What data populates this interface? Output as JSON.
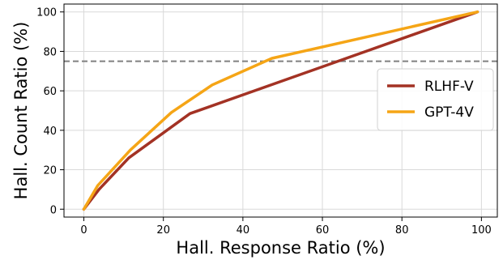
{
  "chart_data": {
    "type": "line",
    "xlabel": "Hall. Response Ratio (%)",
    "ylabel": "Hall. Count Ratio (%)",
    "xlim": [
      -5,
      104
    ],
    "ylim": [
      -4,
      104
    ],
    "xticks": [
      0,
      20,
      40,
      60,
      80,
      100
    ],
    "yticks": [
      0,
      20,
      40,
      60,
      80,
      100
    ],
    "grid": true,
    "legend_position": "center-right",
    "reference_line": {
      "axis": "y",
      "value": 75,
      "style": "dashed",
      "color": "#808080"
    },
    "series": [
      {
        "name": "RLHF-V",
        "color": "#a33224",
        "points": [
          [
            0,
            0
          ],
          [
            3.8,
            10
          ],
          [
            11.3,
            26
          ],
          [
            26.7,
            48.5
          ],
          [
            99,
            100
          ]
        ]
      },
      {
        "name": "GPT-4V",
        "color": "#f5a516",
        "points": [
          [
            0,
            0
          ],
          [
            3.5,
            12
          ],
          [
            11.7,
            30
          ],
          [
            22,
            49
          ],
          [
            32.3,
            63
          ],
          [
            47.3,
            76.5
          ],
          [
            99,
            100
          ]
        ]
      }
    ]
  }
}
